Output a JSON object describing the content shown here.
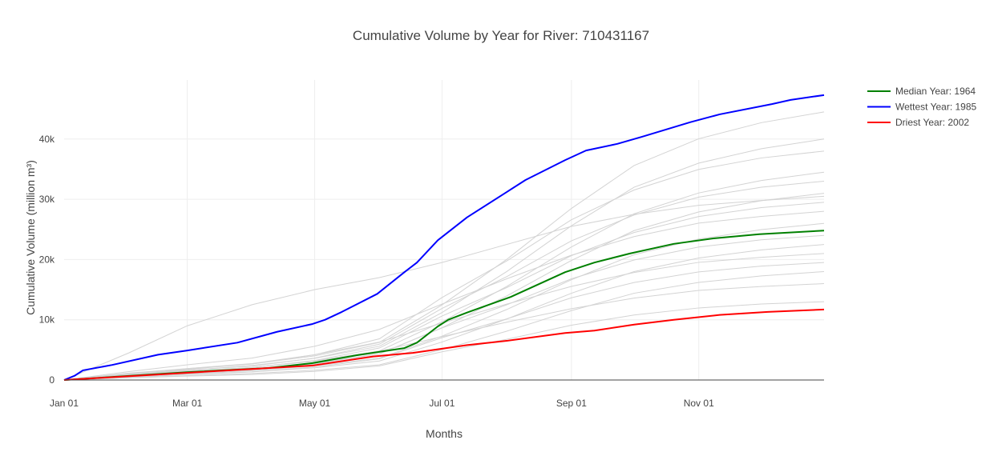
{
  "chart_data": {
    "type": "line",
    "title": "Cumulative Volume by Year for River: 710431167",
    "xlabel": "Months",
    "ylabel": "Cumulative Volume (million m³)",
    "x_unit": "day of year",
    "xlim": [
      0,
      364
    ],
    "ylim": [
      0,
      49800
    ],
    "grid": true,
    "legend_position": "top-right (outside)",
    "x_ticks": [
      {
        "day": 0,
        "label": "Jan 01"
      },
      {
        "day": 59,
        "label": "Mar 01"
      },
      {
        "day": 120,
        "label": "May 01"
      },
      {
        "day": 181,
        "label": "Jul 01"
      },
      {
        "day": 243,
        "label": "Sep 01"
      },
      {
        "day": 304,
        "label": "Nov 01"
      }
    ],
    "y_ticks": [
      {
        "value": 0,
        "label": "0"
      },
      {
        "value": 10000,
        "label": "10k"
      },
      {
        "value": 20000,
        "label": "20k"
      },
      {
        "value": 30000,
        "label": "30k"
      },
      {
        "value": 40000,
        "label": "40k"
      }
    ],
    "other_years": {
      "color": "#d3d3d3",
      "x": [
        0,
        31,
        59,
        90,
        120,
        151,
        181,
        212,
        243,
        273,
        304,
        334,
        364
      ],
      "series": [
        [
          0,
          390,
          650,
          910,
          1430,
          2340,
          4680,
          6760,
          9100,
          10790,
          11960,
          12610,
          13000
        ],
        [
          0,
          800,
          1440,
          2080,
          3200,
          4800,
          7200,
          9600,
          11840,
          13600,
          14880,
          15520,
          16000
        ],
        [
          0,
          360,
          720,
          1080,
          1620,
          2520,
          5040,
          8100,
          11520,
          14400,
          16200,
          17280,
          18000
        ],
        [
          0,
          585,
          975,
          1365,
          2145,
          3510,
          7020,
          10140,
          13650,
          16185,
          17940,
          18915,
          19500
        ],
        [
          0,
          1050,
          1890,
          2730,
          4200,
          6300,
          9450,
          12600,
          15540,
          17850,
          19530,
          20370,
          21000
        ],
        [
          0,
          450,
          900,
          1350,
          2025,
          3150,
          6300,
          10125,
          14400,
          18000,
          20250,
          21600,
          22500
        ],
        [
          0,
          720,
          1200,
          1680,
          2640,
          4320,
          8640,
          12480,
          16800,
          19920,
          22080,
          23280,
          24000
        ],
        [
          0,
          520,
          1040,
          1560,
          2340,
          3640,
          7280,
          11700,
          16640,
          20800,
          23400,
          24960,
          26000
        ],
        [
          0,
          1400,
          2520,
          3640,
          5600,
          8400,
          12600,
          16800,
          20720,
          23800,
          26040,
          27160,
          28000
        ],
        [
          0,
          885,
          1475,
          2065,
          3245,
          5310,
          10620,
          15340,
          20650,
          24485,
          27140,
          28615,
          29500
        ],
        [
          0,
          620,
          1240,
          1860,
          2790,
          4340,
          8680,
          13950,
          19840,
          24800,
          27900,
          29760,
          31000
        ],
        [
          0,
          990,
          1650,
          2310,
          3630,
          5940,
          11880,
          17160,
          23100,
          27390,
          30360,
          32010,
          33000
        ],
        [
          0,
          690,
          1380,
          2070,
          3105,
          4830,
          9660,
          15525,
          22080,
          27600,
          31050,
          33120,
          34500
        ],
        [
          0,
          1140,
          1900,
          2660,
          4180,
          6840,
          13680,
          19760,
          26600,
          31540,
          34960,
          36860,
          38000
        ],
        [
          0,
          800,
          1600,
          2400,
          3600,
          5600,
          11200,
          18000,
          25600,
          32000,
          36000,
          38400,
          40000
        ],
        [
          0,
          890,
          1780,
          2670,
          4005,
          6230,
          12460,
          20025,
          28480,
          35600,
          40050,
          42720,
          44500
        ],
        [
          0,
          4500,
          9000,
          12500,
          15000,
          17000,
          19500,
          22500,
          25500,
          27500,
          29000,
          29800,
          30500
        ]
      ]
    },
    "series": [
      {
        "name": "Median Year: 1964",
        "color": "#008000",
        "x": [
          0,
          59,
          98,
          119,
          140,
          163,
          169,
          179,
          184,
          193,
          214,
          240,
          254,
          271,
          292,
          311,
          333,
          364
        ],
        "y": [
          0,
          1300,
          2000,
          2800,
          4100,
          5300,
          6200,
          8900,
          10000,
          11200,
          13800,
          17900,
          19500,
          21000,
          22600,
          23500,
          24200,
          24800
        ]
      },
      {
        "name": "Wettest Year: 1985",
        "color": "#0000ff",
        "x": [
          0,
          5,
          9,
          23,
          45,
          59,
          83,
          102,
          119,
          125,
          133,
          150,
          163,
          169,
          179,
          193,
          212,
          221,
          240,
          250,
          265,
          277,
          300,
          314,
          339,
          348,
          364
        ],
        "y": [
          0,
          700,
          1600,
          2500,
          4200,
          4900,
          6200,
          8000,
          9300,
          10000,
          11300,
          14300,
          17900,
          19500,
          23200,
          27000,
          31200,
          33200,
          36500,
          38100,
          39200,
          40400,
          42800,
          44100,
          45800,
          46500,
          47300
        ]
      },
      {
        "name": "Driest Year: 2002",
        "color": "#ff0000",
        "x": [
          0,
          59,
          119,
          148,
          167,
          193,
          212,
          240,
          254,
          273,
          292,
          314,
          337,
          364
        ],
        "y": [
          0,
          1200,
          2400,
          3900,
          4500,
          5800,
          6500,
          7800,
          8200,
          9200,
          10000,
          10800,
          11300,
          11700
        ]
      }
    ]
  }
}
